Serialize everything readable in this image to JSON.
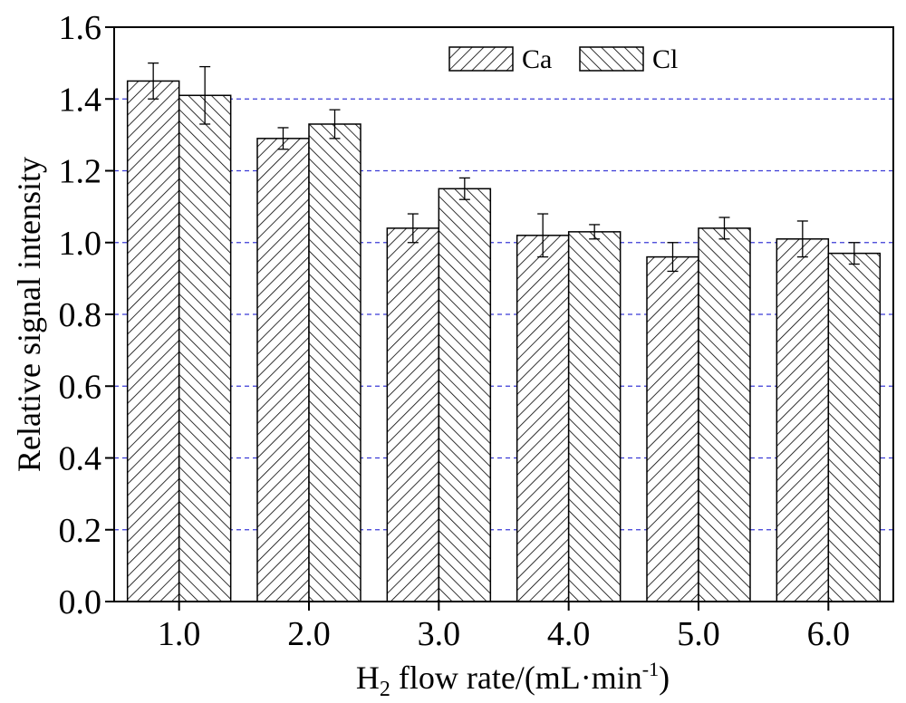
{
  "chart_data": {
    "type": "bar",
    "title": "",
    "xlabel": {
      "main": "H",
      "sub": "2",
      "rest": " flow rate/(mL·min",
      "sup": "-1",
      "end": ")"
    },
    "ylabel": "Relative signal intensity",
    "ylim": [
      0,
      1.6
    ],
    "yticks": [
      "0.0",
      "0.2",
      "0.4",
      "0.6",
      "0.8",
      "1.0",
      "1.2",
      "1.4",
      "1.6"
    ],
    "ytick_values": [
      0,
      0.2,
      0.4,
      0.6,
      0.8,
      1.0,
      1.2,
      1.4,
      1.6
    ],
    "categories": [
      "1.0",
      "2.0",
      "3.0",
      "4.0",
      "5.0",
      "6.0"
    ],
    "grid": "horizontal dashed",
    "grid_color": "#3b3bd6",
    "legend_position": "top-right",
    "series": [
      {
        "name": "Ca",
        "pattern": "diagonal-forward",
        "values": [
          1.45,
          1.29,
          1.04,
          1.02,
          0.96,
          1.01
        ],
        "errors": [
          0.05,
          0.03,
          0.04,
          0.06,
          0.04,
          0.05
        ]
      },
      {
        "name": "Cl",
        "pattern": "diagonal-backward",
        "values": [
          1.41,
          1.33,
          1.15,
          1.03,
          1.04,
          0.97
        ],
        "errors": [
          0.08,
          0.04,
          0.03,
          0.02,
          0.03,
          0.03
        ]
      }
    ]
  }
}
